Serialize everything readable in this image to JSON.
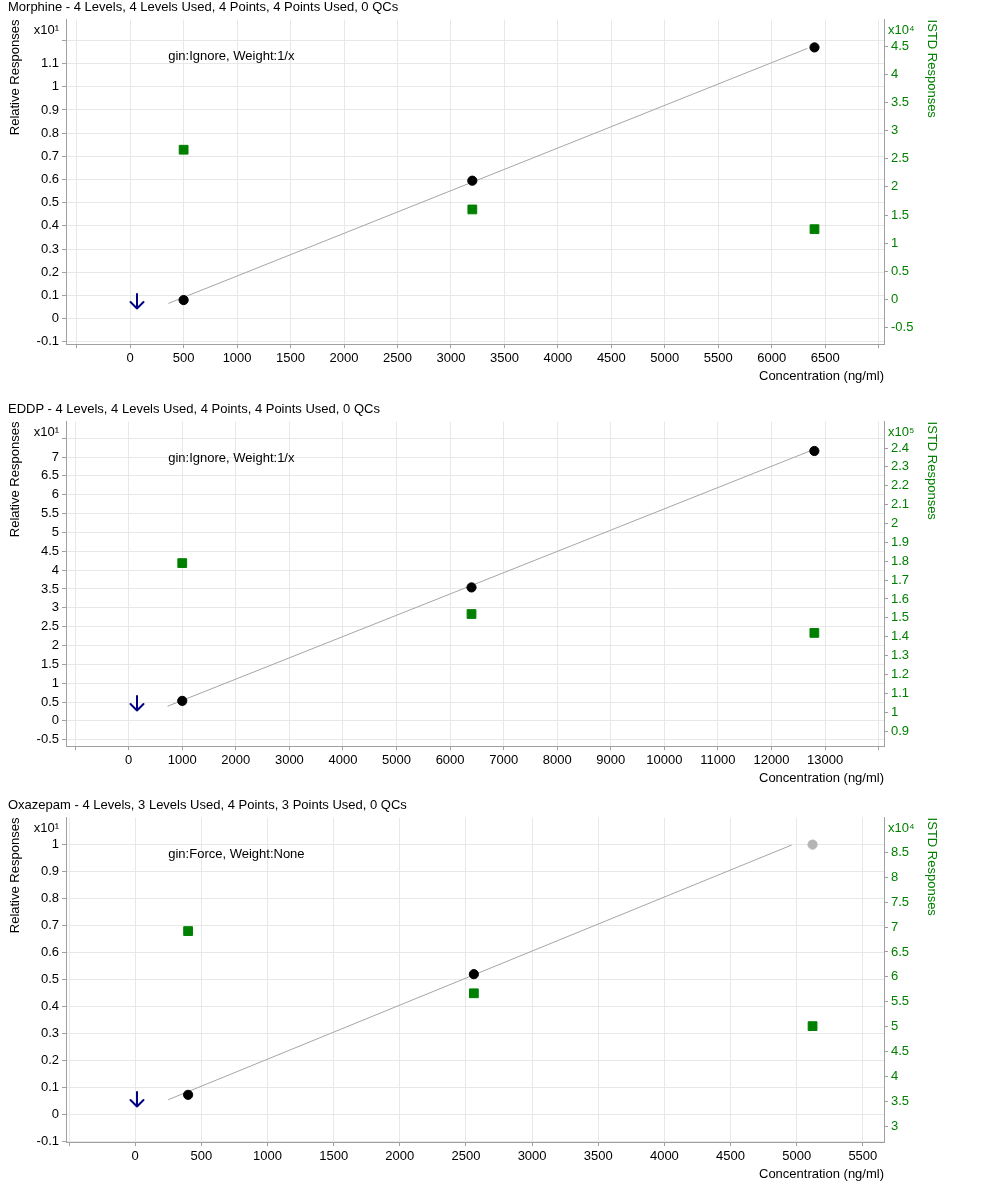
{
  "chart_data": [
    {
      "type": "scatter",
      "title": "Morphine - 4 Levels, 4 Levels Used, 4 Points, 4 Points Used, 0 QCs",
      "xlabel": "Concentration (ng/ml)",
      "ylabel": "Relative Responses",
      "y2label": "ISTD Responses",
      "annotations": [
        "gin:Ignore, Weight:1/x",
        "x10¹",
        "x10⁴"
      ],
      "xlim": [
        -600,
        7050
      ],
      "xticks": [
        {
          "value": -500,
          "label": null
        },
        0,
        500,
        1000,
        1500,
        2000,
        2500,
        3000,
        3500,
        4000,
        4500,
        5000,
        5500,
        6000,
        6500,
        {
          "value": 7000,
          "label": null
        }
      ],
      "ylim": [
        -0.11,
        1.29
      ],
      "yticks": [
        -0.1,
        0,
        0.1,
        0.2,
        0.3,
        0.4,
        0.5,
        0.6,
        0.7,
        0.8,
        0.9,
        1,
        1.1,
        {
          "value": 1.2,
          "label": null
        }
      ],
      "y2lim": [
        -0.79,
        4.97
      ],
      "y2ticks": [
        -0.5,
        0,
        0.5,
        1,
        1.5,
        2,
        2.5,
        3,
        3.5,
        4,
        4.5
      ],
      "grid": true,
      "series": [
        {
          "type": "line",
          "color": "#a6a6a6",
          "marker": "none",
          "x": [
            360,
            6330
          ],
          "values": [
            0.066,
            1.165
          ]
        },
        {
          "color": "#000000",
          "marker": "circle",
          "x": [
            500,
            3200,
            6400
          ],
          "values": [
            0.08,
            0.595,
            1.17
          ]
        },
        {
          "color": "#008000",
          "marker": "square",
          "axis": "y2",
          "x": [
            500,
            3200,
            6400
          ],
          "values": [
            2.66,
            1.6,
            1.25
          ]
        }
      ]
    },
    {
      "type": "scatter",
      "title": "EDDP - 4 Levels, 4 Levels Used, 4 Points, 4 Points Used, 0 QCs",
      "xlabel": "Concentration (ng/ml)",
      "ylabel": "Relative Responses",
      "y2label": "ISTD Responses",
      "annotations": [
        "gin:Ignore, Weight:1/x",
        "x10¹",
        "x10⁵"
      ],
      "xlim": [
        -1170,
        14100
      ],
      "xticks": [
        {
          "value": -1000,
          "label": null
        },
        0,
        1000,
        2000,
        3000,
        4000,
        5000,
        6000,
        7000,
        8000,
        9000,
        10000,
        11000,
        12000,
        13000,
        {
          "value": 14000,
          "label": null
        }
      ],
      "ylim": [
        -0.67,
        7.94
      ],
      "yticks": [
        -0.5,
        0,
        0.5,
        1,
        1.5,
        2,
        2.5,
        3,
        3.5,
        4,
        4.5,
        5,
        5.5,
        6,
        6.5,
        7,
        {
          "value": 7.5,
          "label": null
        }
      ],
      "y2lim": [
        0.82,
        2.54
      ],
      "y2ticks": [
        0.9,
        1,
        1.1,
        1.2,
        1.3,
        1.4,
        1.5,
        1.6,
        1.7,
        1.8,
        1.9,
        2,
        2.1,
        2.2,
        2.3,
        2.4
      ],
      "grid": true,
      "series": [
        {
          "type": "line",
          "color": "#a6a6a6",
          "marker": "none",
          "x": [
            730,
            12700
          ],
          "values": [
            0.39,
            7.15
          ]
        },
        {
          "color": "#000000",
          "marker": "circle",
          "x": [
            1000,
            6400,
            12800
          ],
          "values": [
            0.53,
            3.54,
            7.16
          ]
        },
        {
          "color": "#008000",
          "marker": "square",
          "axis": "y2",
          "x": [
            1000,
            6400,
            12800
          ],
          "values": [
            1.79,
            1.52,
            1.42
          ]
        }
      ]
    },
    {
      "type": "scatter",
      "title": "Oxazepam - 4 Levels, 3 Levels Used, 4 Points, 3 Points Used, 0 QCs",
      "xlabel": "Concentration (ng/ml)",
      "ylabel": "Relative Responses",
      "y2label": "ISTD Responses",
      "annotations": [
        "gin:Force, Weight:None",
        "x10¹",
        "x10⁴"
      ],
      "xlim": [
        -523,
        5660
      ],
      "xticks": [
        {
          "value": -500,
          "label": null
        },
        0,
        500,
        1000,
        1500,
        2000,
        2500,
        3000,
        3500,
        4000,
        4500,
        5000,
        5500
      ],
      "ylim": [
        -0.102,
        1.1
      ],
      "yticks": [
        -0.1,
        0,
        0.1,
        0.2,
        0.3,
        0.4,
        0.5,
        0.6,
        0.7,
        0.8,
        0.9,
        1
      ],
      "y2lim": [
        2.68,
        9.2
      ],
      "y2ticks": [
        3,
        3.5,
        4,
        4.5,
        5,
        5.5,
        6,
        6.5,
        7,
        7.5,
        8,
        8.5
      ],
      "grid": true,
      "series": [
        {
          "type": "line",
          "color": "#a6a6a6",
          "marker": "none",
          "x": [
            250,
            4960
          ],
          "values": [
            0.055,
            0.998
          ]
        },
        {
          "color": "#000000",
          "marker": "circle",
          "x": [
            400,
            2560
          ],
          "values": [
            0.073,
            0.52
          ]
        },
        {
          "color": "#b4b4b4",
          "marker": "circle",
          "x": [
            5120
          ],
          "values": [
            1.0
          ]
        },
        {
          "color": "#008000",
          "marker": "square",
          "axis": "y2",
          "x": [
            400,
            2560,
            5120
          ],
          "values": [
            6.92,
            5.67,
            5.01
          ]
        }
      ]
    }
  ]
}
